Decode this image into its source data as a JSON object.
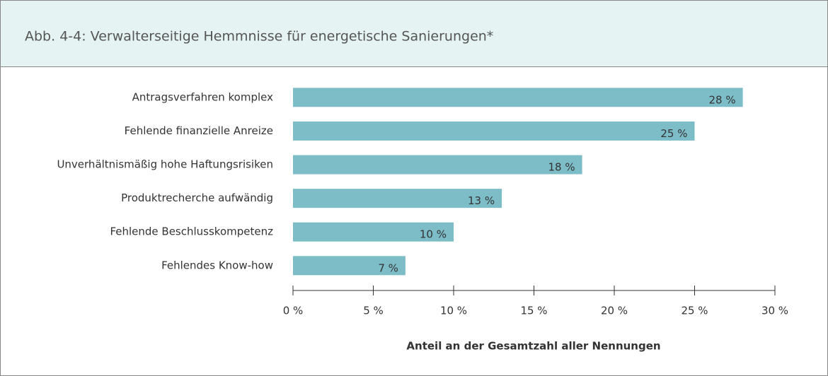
{
  "chart_data": {
    "type": "bar",
    "orientation": "horizontal",
    "title": "Abb. 4-4:  Verwalterseitige Hemmnisse für energetische Sanierungen*",
    "categories": [
      "Antragsverfahren komplex",
      "Fehlende finanzielle Anreize",
      "Unverhältnismäßig hohe Haftungsrisiken",
      "Produktrecherche aufwändig",
      "Fehlende Beschlusskompetenz",
      "Fehlendes Know-how"
    ],
    "values": [
      28,
      25,
      18,
      13,
      10,
      7
    ],
    "value_labels": [
      "28 %",
      "25 %",
      "18 %",
      "13 %",
      "10 %",
      "7 %"
    ],
    "color": "#7dbdc8",
    "xlabel": "Anteil an der Gesamtzahl aller Nennungen",
    "xlim": [
      0,
      30
    ],
    "xticks": [
      {
        "value": 0,
        "label": "0 %"
      },
      {
        "value": 5,
        "label": "5 %"
      },
      {
        "value": 10,
        "label": "10 %"
      },
      {
        "value": 15,
        "label": "15 %"
      },
      {
        "value": 20,
        "label": "20 %"
      },
      {
        "value": 25,
        "label": "25 %"
      },
      {
        "value": 30,
        "label": "30 %"
      }
    ],
    "grid": false
  }
}
